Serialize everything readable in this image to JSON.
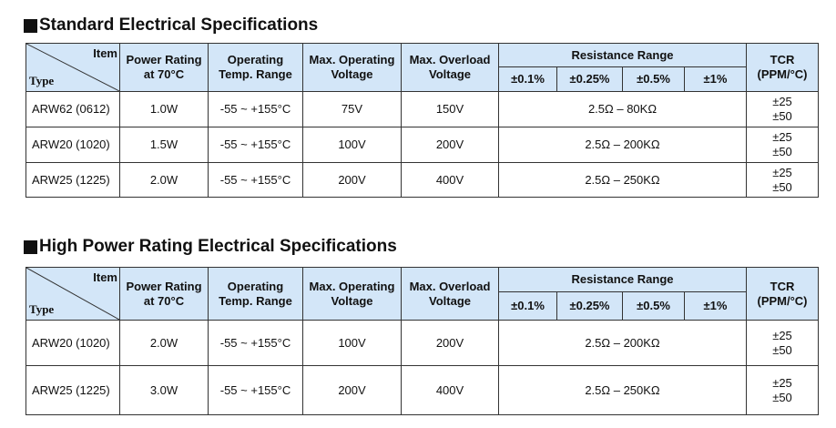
{
  "sections": [
    {
      "title": "Standard Electrical Specifications",
      "header": {
        "item": "Item",
        "type": "Type",
        "columns": [
          [
            "Power Rating",
            "at 70°C"
          ],
          [
            "Operating",
            "Temp. Range"
          ],
          [
            "Max. Operating",
            "Voltage"
          ],
          [
            "Max. Overload",
            "Voltage"
          ]
        ],
        "resistance_range": "Resistance Range",
        "tolerances": [
          "±0.1%",
          "±0.25%",
          "±0.5%",
          "±1%"
        ],
        "tcr": [
          "TCR",
          "(PPM/°C)"
        ]
      },
      "rows": [
        {
          "type": "ARW62 (0612)",
          "power": "1.0W",
          "temp": "-55 ~ +155°C",
          "max_operating": "75V",
          "max_overload": "150V",
          "resistance": "2.5Ω – 80KΩ",
          "tcr": [
            "±25",
            "±50"
          ]
        },
        {
          "type": "ARW20 (1020)",
          "power": "1.5W",
          "temp": "-55 ~ +155°C",
          "max_operating": "100V",
          "max_overload": "200V",
          "resistance": "2.5Ω – 200KΩ",
          "tcr": [
            "±25",
            "±50"
          ]
        },
        {
          "type": "ARW25 (1225)",
          "power": "2.0W",
          "temp": "-55 ~ +155°C",
          "max_operating": "200V",
          "max_overload": "400V",
          "resistance": "2.5Ω – 250KΩ",
          "tcr": [
            "±25",
            "±50"
          ]
        }
      ]
    },
    {
      "title": "High Power Rating Electrical Specifications",
      "header": {
        "item": "Item",
        "type": "Type",
        "columns": [
          [
            "Power Rating",
            "at 70°C"
          ],
          [
            "Operating",
            "Temp. Range"
          ],
          [
            "Max. Operating",
            "Voltage"
          ],
          [
            "Max. Overload",
            "Voltage"
          ]
        ],
        "resistance_range": "Resistance Range",
        "tolerances": [
          "±0.1%",
          "±0.25%",
          "±0.5%",
          "±1%"
        ],
        "tcr": [
          "TCR",
          "(PPM/°C)"
        ]
      },
      "rows": [
        {
          "type": "ARW20 (1020)",
          "power": "2.0W",
          "temp": "-55 ~ +155°C",
          "max_operating": "100V",
          "max_overload": "200V",
          "resistance": "2.5Ω – 200KΩ",
          "tcr": [
            "±25",
            "±50"
          ]
        },
        {
          "type": "ARW25 (1225)",
          "power": "3.0W",
          "temp": "-55 ~ +155°C",
          "max_operating": "200V",
          "max_overload": "400V",
          "resistance": "2.5Ω – 250KΩ",
          "tcr": [
            "±25",
            "±50"
          ]
        }
      ]
    }
  ]
}
